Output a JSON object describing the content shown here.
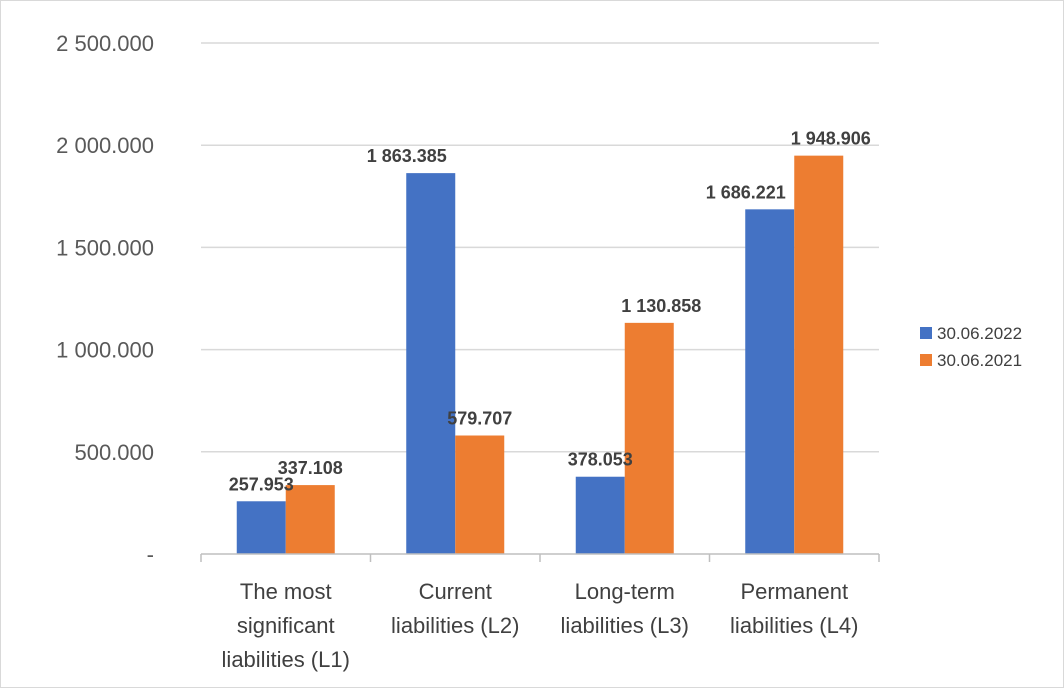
{
  "chart_data": {
    "type": "bar",
    "categories": [
      [
        "The most",
        "significant",
        "liabilities  (L1)"
      ],
      [
        "Current",
        "liabilities (L2)"
      ],
      [
        "Long-term",
        "liabilities (L3)"
      ],
      [
        "Permanent",
        "liabilities (L4)"
      ]
    ],
    "series": [
      {
        "name": "30.06.2022",
        "color": "#4472C4",
        "values": [
          257953,
          1863385,
          378053,
          1686221
        ],
        "labels": [
          "257.953",
          "1 863.385",
          "378.053",
          "1 686.221"
        ]
      },
      {
        "name": "30.06.2021",
        "color": "#ED7D31",
        "values": [
          337108,
          579707,
          1130858,
          1948906
        ],
        "labels": [
          "337.108",
          "579.707",
          "1 130.858",
          "1 948.906"
        ]
      }
    ],
    "ylim": [
      0,
      2500000
    ],
    "yticks": [
      0,
      500000,
      1000000,
      1500000,
      2000000,
      2500000
    ],
    "ytick_labels": [
      "-",
      "500.000",
      "1 000.000",
      "1 500.000",
      "2 000.000",
      "2 500.000"
    ],
    "grid": true,
    "legend_position": "right"
  }
}
